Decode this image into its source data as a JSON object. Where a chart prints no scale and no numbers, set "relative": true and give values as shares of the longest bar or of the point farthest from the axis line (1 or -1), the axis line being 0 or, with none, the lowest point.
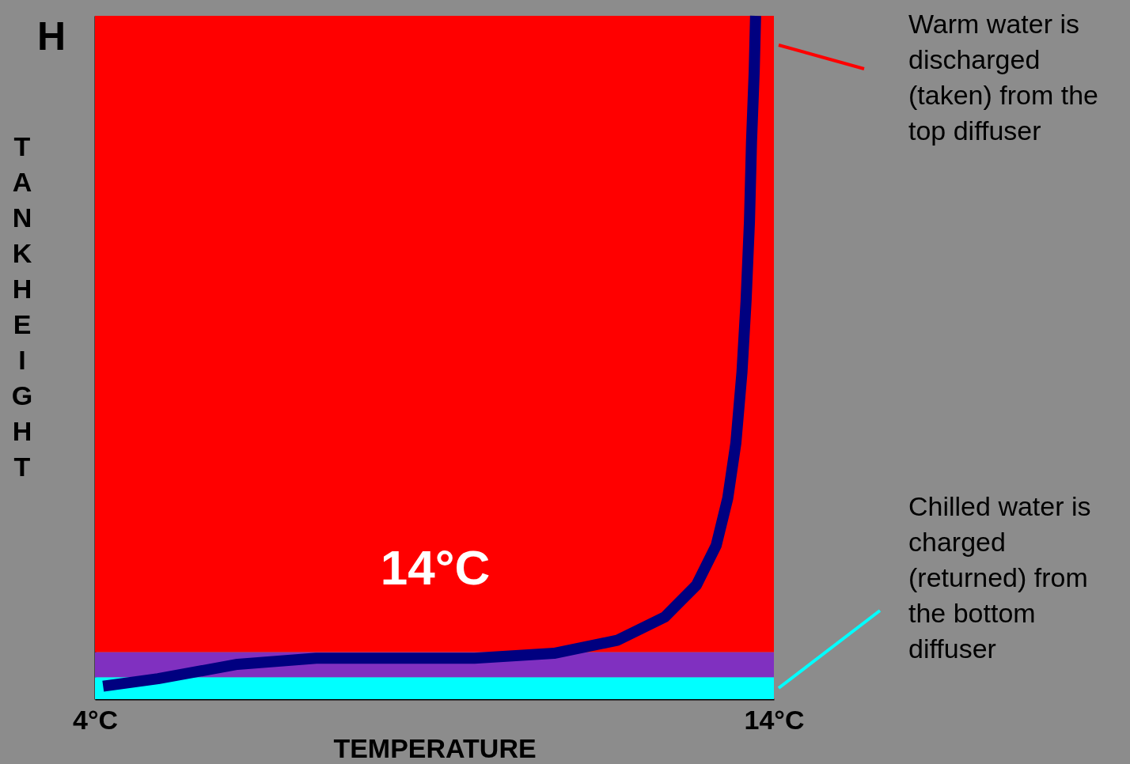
{
  "chart_data": {
    "type": "line",
    "relative": true,
    "xlabel": "TEMPERATURE",
    "ylabel": "TANK HEIGHT",
    "xlim": [
      4,
      14
    ],
    "xticks": [
      {
        "value": 4,
        "label": "4°C"
      },
      {
        "value": 14,
        "label": "14°C"
      }
    ],
    "x": [
      4.12,
      4.93,
      6.1,
      7.26,
      8.43,
      9.59,
      10.76,
      11.69,
      12.39,
      12.86,
      13.15,
      13.32,
      13.44,
      13.53,
      13.59,
      13.64,
      13.67,
      13.71,
      13.73
    ],
    "series": [
      {
        "color": "#000080",
        "values": [
          0.019,
          0.03,
          0.051,
          0.06,
          0.06,
          0.06,
          0.067,
          0.086,
          0.12,
          0.167,
          0.225,
          0.294,
          0.375,
          0.479,
          0.583,
          0.699,
          0.815,
          0.919,
          1.0
        ]
      }
    ],
    "bands": [
      {
        "axis": "y",
        "from": 0,
        "to": 0.032,
        "color": "#00ffff"
      },
      {
        "axis": "y",
        "from": 0.032,
        "to": 0.069,
        "color": "#8030c0"
      },
      {
        "axis": "y",
        "from": 0.069,
        "to": 1,
        "color": "#ff0000"
      }
    ],
    "annotations": [
      "H",
      "14°C",
      "Warm water is\ndischarged\n(taken) from the\ntop diffuser",
      "Chilled water is\ncharged\n(returned) from\nthe bottom\ndiffuser"
    ],
    "grid": false,
    "line_style": "solid",
    "marker": "none"
  }
}
